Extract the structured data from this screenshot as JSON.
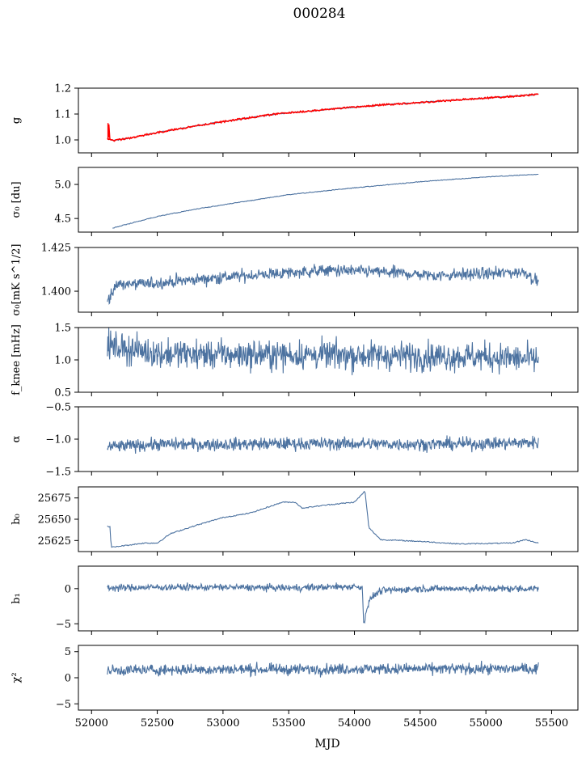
{
  "figure": {
    "title": "000284",
    "xlabel": "MJD"
  },
  "chart_data": [
    {
      "type": "line",
      "ylabel": "g",
      "ylim": [
        0.95,
        1.2
      ],
      "xlim": [
        51900,
        55700
      ],
      "yticks": [
        "1.0",
        "1.1",
        "1.2"
      ],
      "ytick_values": [
        1.0,
        1.1,
        1.2
      ],
      "series": [
        {
          "color": "#4c72a0",
          "style": "smooth",
          "x": [
            52120,
            52160,
            52300,
            52500,
            52800,
            53100,
            53400,
            53800,
            54200,
            54600,
            55000,
            55200,
            55400
          ],
          "values": [
            1.005,
            0.997,
            1.008,
            1.028,
            1.055,
            1.078,
            1.1,
            1.118,
            1.135,
            1.148,
            1.162,
            1.168,
            1.176
          ],
          "noise": 0.002
        },
        {
          "color": "#ff0000",
          "style": "smooth",
          "x": [
            52120,
            52160,
            52300,
            52500,
            52800,
            53100,
            53400,
            53800,
            54200,
            54600,
            55000,
            55200,
            55400
          ],
          "values": [
            1.005,
            0.997,
            1.008,
            1.028,
            1.055,
            1.078,
            1.1,
            1.118,
            1.135,
            1.148,
            1.162,
            1.168,
            1.176
          ],
          "noise": 0.003
        }
      ]
    },
    {
      "type": "line",
      "ylabel": "σ₀ [du]",
      "ylim": [
        4.3,
        5.25
      ],
      "xlim": [
        51900,
        55700
      ],
      "yticks": [
        "4.5",
        "5.0"
      ],
      "ytick_values": [
        4.5,
        5.0
      ],
      "series": [
        {
          "color": "#4c72a0",
          "style": "smooth",
          "x": [
            52160,
            52300,
            52500,
            52800,
            53100,
            53500,
            54000,
            54500,
            55000,
            55400
          ],
          "values": [
            4.36,
            4.43,
            4.53,
            4.64,
            4.73,
            4.85,
            4.95,
            5.04,
            5.11,
            5.15
          ],
          "noise": 0.005
        }
      ]
    },
    {
      "type": "line",
      "ylabel": "σ₀[mK s^1/2]",
      "ylim": [
        1.388,
        1.425
      ],
      "xlim": [
        51900,
        55700
      ],
      "yticks": [
        "1.400",
        "1.425"
      ],
      "ytick_values": [
        1.4,
        1.425
      ],
      "series": [
        {
          "color": "#4c72a0",
          "style": "noisy",
          "x": [
            52120,
            52200,
            52400,
            52700,
            53000,
            53400,
            53800,
            54200,
            54600,
            55000,
            55300,
            55400
          ],
          "values": [
            1.395,
            1.404,
            1.404,
            1.406,
            1.408,
            1.41,
            1.412,
            1.411,
            1.409,
            1.41,
            1.411,
            1.405
          ],
          "noise": 0.0025
        }
      ]
    },
    {
      "type": "line",
      "ylabel": "f_knee [mHz]",
      "ylim": [
        0.5,
        1.5
      ],
      "xlim": [
        51900,
        55700
      ],
      "yticks": [
        "0.5",
        "1.0",
        "1.5"
      ],
      "ytick_values": [
        0.5,
        1.0,
        1.5
      ],
      "series": [
        {
          "color": "#4c72a0",
          "style": "noisy",
          "x": [
            52120,
            52500,
            53000,
            53500,
            54000,
            54500,
            55000,
            55400
          ],
          "values": [
            1.22,
            1.1,
            1.08,
            1.08,
            1.07,
            1.06,
            1.05,
            1.0
          ],
          "noise": 0.16
        }
      ]
    },
    {
      "type": "line",
      "ylabel": "α",
      "ylim": [
        -1.5,
        -0.5
      ],
      "xlim": [
        51900,
        55700
      ],
      "yticks": [
        "−1.5",
        "−1.0",
        "−0.5"
      ],
      "ytick_values": [
        -1.5,
        -1.0,
        -0.5
      ],
      "series": [
        {
          "color": "#4c72a0",
          "style": "noisy",
          "x": [
            52120,
            52500,
            53000,
            53500,
            54000,
            54500,
            55000,
            55400
          ],
          "values": [
            -1.12,
            -1.08,
            -1.08,
            -1.07,
            -1.07,
            -1.08,
            -1.07,
            -1.05
          ],
          "noise": 0.07
        }
      ]
    },
    {
      "type": "line",
      "ylabel": "b₀",
      "ylim": [
        25612,
        25688
      ],
      "xlim": [
        51900,
        55700
      ],
      "yticks": [
        "25625",
        "25650",
        "25675"
      ],
      "ytick_values": [
        25625,
        25650,
        25675
      ],
      "series": [
        {
          "color": "#4c72a0",
          "style": "smooth",
          "x": [
            52120,
            52140,
            52150,
            52200,
            52400,
            52500,
            52600,
            52800,
            53000,
            53200,
            53300,
            53450,
            53550,
            53600,
            53800,
            54000,
            54080,
            54110,
            54200,
            54500,
            54800,
            55200,
            55300,
            55400
          ],
          "values": [
            25642,
            25641,
            25617,
            25618,
            25622,
            25622,
            25633,
            25643,
            25652,
            25657,
            25662,
            25670,
            25670,
            25663,
            25667,
            25670,
            25683,
            25640,
            25626,
            25624,
            25621,
            25622,
            25626,
            25622
          ],
          "noise": 0.6
        }
      ]
    },
    {
      "type": "line",
      "ylabel": "b₁",
      "ylim": [
        -6,
        3.2
      ],
      "xlim": [
        51900,
        55700
      ],
      "yticks": [
        "−5",
        "0"
      ],
      "ytick_values": [
        -5,
        0
      ],
      "series": [
        {
          "color": "#4c72a0",
          "style": "noisy",
          "x": [
            52120,
            52500,
            53000,
            53500,
            54000,
            54060,
            54070,
            54090,
            54130,
            54200,
            54500,
            55000,
            55400
          ],
          "values": [
            0.1,
            0.2,
            0.2,
            0.1,
            0.3,
            0.2,
            -5.2,
            -3.0,
            -1.2,
            -0.3,
            0.0,
            0.0,
            0.0
          ],
          "noise": 0.35
        }
      ]
    },
    {
      "type": "line",
      "ylabel": "χ²",
      "ylim": [
        -6.2,
        6.2
      ],
      "xlim": [
        51900,
        55700
      ],
      "yticks": [
        "−5",
        "0",
        "5"
      ],
      "ytick_values": [
        -5,
        0,
        5
      ],
      "xticks": [
        "52000",
        "52500",
        "53000",
        "53500",
        "54000",
        "54500",
        "55000",
        "55500"
      ],
      "xtick_values": [
        52000,
        52500,
        53000,
        53500,
        54000,
        54500,
        55000,
        55500
      ],
      "series": [
        {
          "color": "#4c72a0",
          "style": "noisy",
          "x": [
            52120,
            52500,
            53000,
            53500,
            54000,
            54500,
            55000,
            55400
          ],
          "values": [
            1.4,
            1.5,
            1.6,
            1.6,
            1.7,
            1.7,
            1.7,
            1.7
          ],
          "noise": 0.75
        }
      ]
    }
  ]
}
